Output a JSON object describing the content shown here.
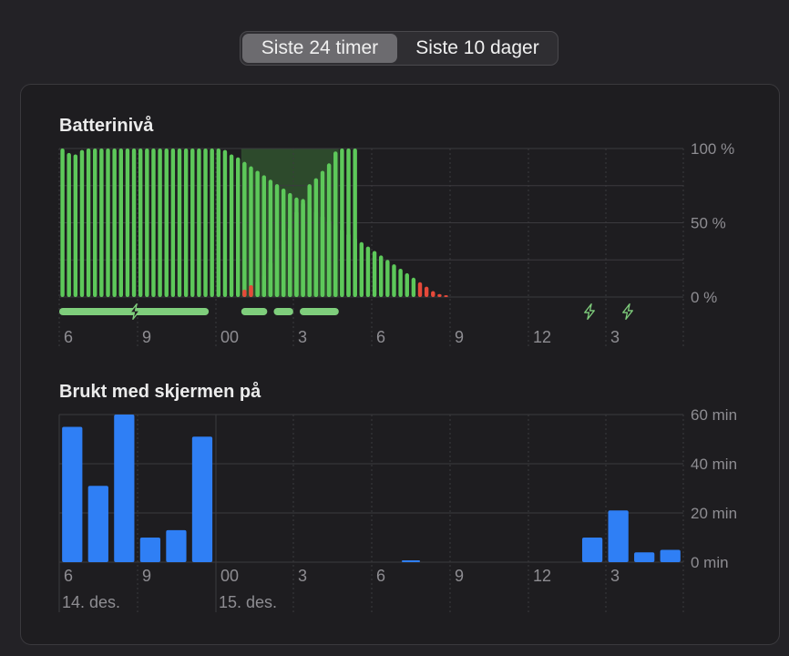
{
  "tabs": [
    {
      "label": "Siste 24 timer",
      "active": true
    },
    {
      "label": "Siste 10 dager",
      "active": false
    }
  ],
  "colors": {
    "battery": "#5dc85a",
    "battery_low": "#e5493a",
    "charging_bg": "#2d4a2c",
    "charging_bar": "#7fce7c",
    "screen_bar": "#2f7ff5",
    "grid": "#3b3a3e",
    "tick_text": "#8e8d92"
  },
  "icons": {
    "charging": "lightning-bolt-icon"
  },
  "chart_data": [
    {
      "type": "bar",
      "title": "Batterinivå",
      "x_ticks": [
        "6",
        "9",
        "00",
        "3",
        "6",
        "9",
        "12",
        "3"
      ],
      "y_ticks": [
        "100 %",
        "50 %",
        "0 %"
      ],
      "ylim": [
        0,
        100
      ],
      "grid": true,
      "low_threshold": 10,
      "segments": [
        {
          "start": "06:00",
          "interval_minutes": 15,
          "values": [
            100,
            97,
            96,
            99,
            100,
            100,
            100,
            100,
            100,
            100,
            100,
            100,
            100,
            100,
            100,
            100,
            100,
            100,
            100,
            100,
            100,
            100,
            100,
            100,
            100,
            99,
            96,
            94,
            91,
            88,
            85,
            82,
            79,
            76,
            73,
            70,
            67,
            64,
            61,
            58,
            55,
            52,
            49,
            46,
            43,
            40,
            37,
            34,
            31,
            28,
            25,
            22,
            19,
            16,
            13,
            10,
            7,
            4,
            2,
            1
          ]
        },
        {
          "start": "13:00",
          "interval_minutes": 15,
          "values": [
            5,
            8,
            11,
            15,
            24,
            33,
            39,
            47,
            58,
            66,
            76,
            80,
            85,
            90,
            98,
            100,
            100,
            100
          ]
        }
      ],
      "charging_periods": [
        {
          "start": "06:00",
          "end": "11:45"
        },
        {
          "start": "13:00",
          "end": "14:00"
        },
        {
          "start": "14:15",
          "end": "15:00"
        },
        {
          "start": "15:15",
          "end": "16:45"
        }
      ],
      "charging_highlight": {
        "start": "13:00",
        "end": "16:45"
      }
    },
    {
      "type": "bar",
      "title": "Brukt med skjermen på",
      "x_ticks": [
        "6",
        "9",
        "00",
        "3",
        "6",
        "9",
        "12",
        "3"
      ],
      "date_labels": [
        "14. des.",
        "15. des."
      ],
      "y_ticks": [
        "60 min",
        "40 min",
        "20 min",
        "0 min"
      ],
      "ylim": [
        0,
        60
      ],
      "grid": true,
      "unit": "min",
      "hours": [
        "06",
        "07",
        "08",
        "09",
        "10",
        "11",
        "12",
        "13",
        "14",
        "15",
        "16",
        "17",
        "18",
        "19",
        "20",
        "21",
        "22",
        "23",
        "00",
        "01",
        "02",
        "03",
        "04",
        "05"
      ],
      "values": [
        55,
        31,
        60,
        10,
        13,
        51,
        0,
        0,
        0,
        0,
        0,
        0,
        0,
        0,
        0,
        0,
        0,
        0,
        0,
        0,
        10,
        21,
        4,
        5
      ]
    }
  ]
}
